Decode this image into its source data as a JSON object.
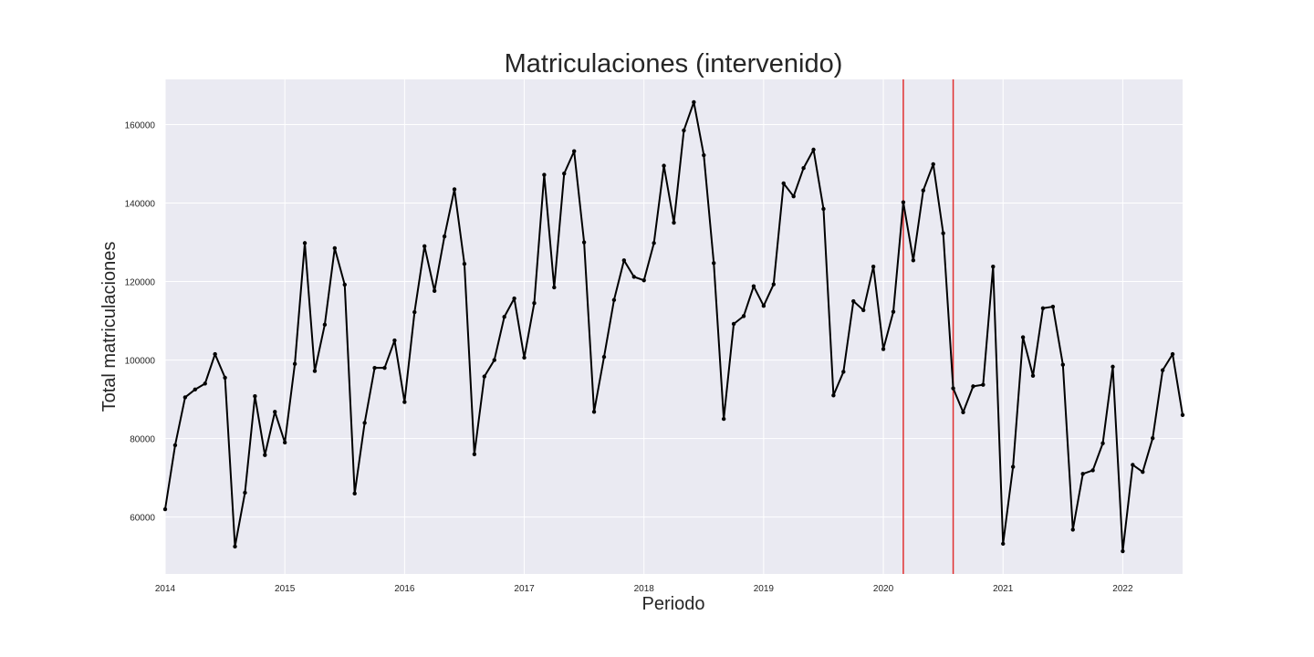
{
  "chart_data": {
    "type": "line",
    "title": "Matriculaciones (intervenido)",
    "xlabel": "Periodo",
    "ylabel": "Total matriculaciones",
    "xlim": [
      "2014-01",
      "2022-07"
    ],
    "ylim": [
      45500,
      171500
    ],
    "x_ticks": [
      "2014",
      "2015",
      "2016",
      "2017",
      "2018",
      "2019",
      "2020",
      "2021",
      "2022"
    ],
    "y_ticks": [
      60000,
      80000,
      100000,
      120000,
      140000,
      160000
    ],
    "grid": true,
    "legend": "none",
    "background_color": "#eaeaf2",
    "line_color": "#000000",
    "marker_color": "#000000",
    "vline_color": "#e03030",
    "vlines": [
      "2020-03",
      "2020-08"
    ],
    "series": [
      {
        "x": [
          "2014-01",
          "2014-02",
          "2014-03",
          "2014-04",
          "2014-05",
          "2014-06",
          "2014-07",
          "2014-08",
          "2014-09",
          "2014-10",
          "2014-11",
          "2014-12",
          "2015-01",
          "2015-02",
          "2015-03",
          "2015-04",
          "2015-05",
          "2015-06",
          "2015-07",
          "2015-08",
          "2015-09",
          "2015-10",
          "2015-11",
          "2015-12",
          "2016-01",
          "2016-02",
          "2016-03",
          "2016-04",
          "2016-05",
          "2016-06",
          "2016-07",
          "2016-08",
          "2016-09",
          "2016-10",
          "2016-11",
          "2016-12",
          "2017-01",
          "2017-02",
          "2017-03",
          "2017-04",
          "2017-05",
          "2017-06",
          "2017-07",
          "2017-08",
          "2017-09",
          "2017-10",
          "2017-11",
          "2017-12",
          "2018-01",
          "2018-02",
          "2018-03",
          "2018-04",
          "2018-05",
          "2018-06",
          "2018-07",
          "2018-08",
          "2018-09",
          "2018-10",
          "2018-11",
          "2018-12",
          "2019-01",
          "2019-02",
          "2019-03",
          "2019-04",
          "2019-05",
          "2019-06",
          "2019-07",
          "2019-08",
          "2019-09",
          "2019-10",
          "2019-11",
          "2019-12",
          "2020-01",
          "2020-02",
          "2020-03",
          "2020-04",
          "2020-05",
          "2020-06",
          "2020-07",
          "2020-08",
          "2020-09",
          "2020-10",
          "2020-11",
          "2020-12",
          "2021-01",
          "2021-02",
          "2021-03",
          "2021-04",
          "2021-05",
          "2021-06",
          "2021-07",
          "2021-08",
          "2021-09",
          "2021-10",
          "2021-11",
          "2021-12",
          "2022-01",
          "2022-02",
          "2022-03",
          "2022-04",
          "2022-05",
          "2022-06",
          "2022-07"
        ],
        "values": [
          62000,
          78300,
          90500,
          92500,
          94000,
          101500,
          95500,
          52500,
          66200,
          90800,
          75800,
          86800,
          79000,
          99000,
          129800,
          97200,
          109000,
          128500,
          119200,
          66000,
          84000,
          98000,
          98000,
          105000,
          89300,
          112200,
          129000,
          117600,
          131500,
          143500,
          124500,
          76000,
          95800,
          100000,
          111000,
          115700,
          100600,
          114500,
          147200,
          118500,
          147500,
          153200,
          130000,
          86800,
          100800,
          115300,
          125400,
          121200,
          120300,
          129800,
          149500,
          135000,
          158500,
          165700,
          152200,
          124700,
          85000,
          109200,
          111200,
          118800,
          113800,
          119300,
          145000,
          141700,
          148900,
          153600,
          138500,
          91000,
          97000,
          115000,
          112700,
          123800,
          102800,
          112300,
          140200,
          125400,
          143200,
          149900,
          132300,
          92800,
          86700,
          93300,
          93700,
          123800,
          53200,
          72800,
          105800,
          96000,
          113200,
          113600,
          98800,
          56800,
          71000,
          71900,
          78800,
          98300,
          51300,
          73300,
          71500,
          80100,
          97400,
          101500,
          86000
        ]
      }
    ]
  }
}
